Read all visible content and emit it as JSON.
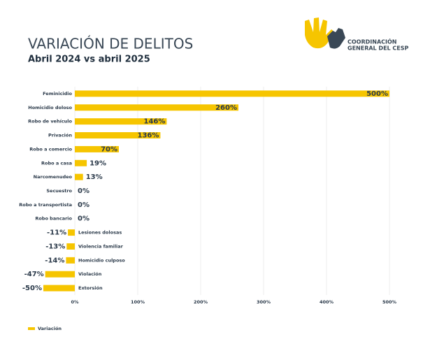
{
  "chart_data": {
    "type": "bar",
    "orientation": "horizontal",
    "title": "VARIACIÓN DE DELITOS",
    "subtitle": "Abril 2024 vs abril 2025",
    "logo_text": [
      "COORDINACIÓN",
      "GENERAL DEL CESP"
    ],
    "categories": [
      "Feminicidio",
      "Homicidio doloso",
      "Robo de vehículo",
      "Privación",
      "Robo a comercio",
      "Robo a casa",
      "Narcomenudeo",
      "Secuestro",
      "Robo a transportista",
      "Robo bancario",
      "Lesiones dolosas",
      "Violencia familiar",
      "Homicidio culposo",
      "Violación",
      "Extorsión"
    ],
    "series": [
      {
        "name": "Variación",
        "color": "#f6c500",
        "values": [
          500,
          260,
          146,
          136,
          70,
          19,
          13,
          0,
          0,
          0,
          -11,
          -13,
          -14,
          -47,
          -50
        ],
        "value_labels": [
          "500%",
          "260%",
          "146%",
          "136%",
          "70%",
          "19%",
          "13%",
          "0%",
          "0%",
          "0%",
          "-11%",
          "-13%",
          "-14%",
          "-47%",
          "-50%"
        ]
      }
    ],
    "xlim": [
      -60,
      510
    ],
    "xticks": [
      {
        "value": 0,
        "label": "0%"
      },
      {
        "value": 100,
        "label": "100%"
      },
      {
        "value": 200,
        "label": "200%"
      },
      {
        "value": 300,
        "label": "300%"
      },
      {
        "value": 400,
        "label": "400%"
      },
      {
        "value": 500,
        "label": "500%"
      }
    ],
    "grid": true
  }
}
